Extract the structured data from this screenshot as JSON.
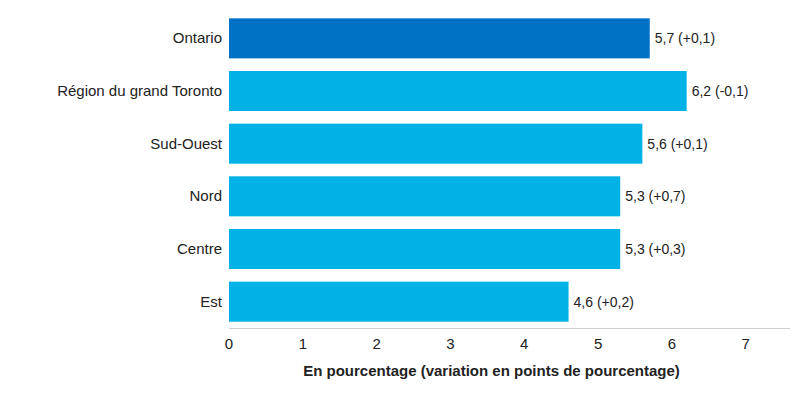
{
  "chart_data": {
    "type": "bar",
    "orientation": "horizontal",
    "x_label": "En pourcentage (variation en points de pourcentage)",
    "categories": [
      "Ontario",
      "Région du grand Toronto",
      "Sud-Ouest",
      "Nord",
      "Centre",
      "Est"
    ],
    "values": [
      5.7,
      6.2,
      5.6,
      5.3,
      5.3,
      4.6
    ],
    "value_labels": [
      "5,7 (+0,1)",
      "6,2 (-0,1)",
      "5,6 (+0,1)",
      "5,3 (+0,7)",
      "5,3 (+0,3)",
      "4,6 (+0,2)"
    ],
    "colors": [
      "#0072c6",
      "#00b2e6",
      "#00b2e6",
      "#00b2e6",
      "#00b2e6",
      "#00b2e6"
    ],
    "xlim": [
      0,
      7.6
    ],
    "xticks": [
      0,
      1,
      2,
      3,
      4,
      5,
      6,
      7
    ],
    "grid": false,
    "data_labels": true
  }
}
